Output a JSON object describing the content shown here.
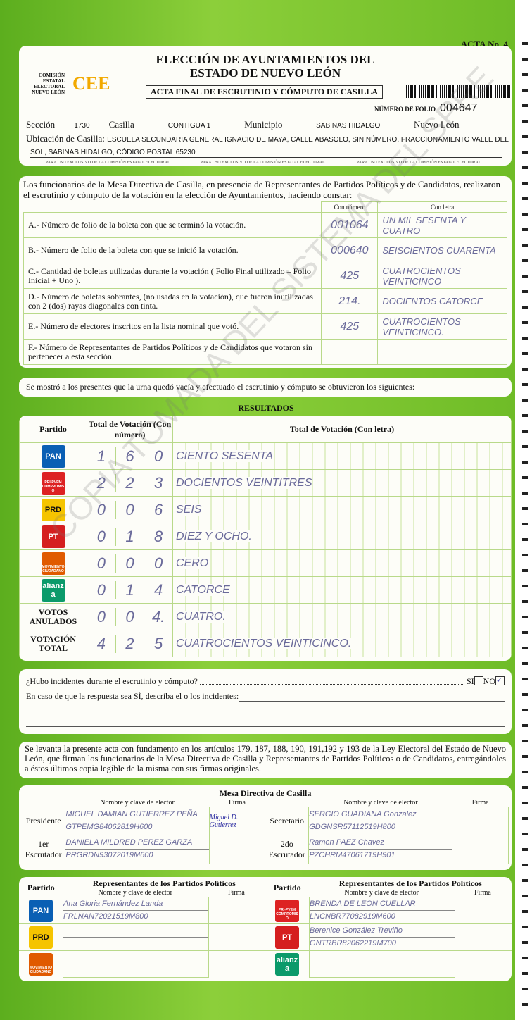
{
  "header": {
    "acta_no": "ACTA No. 4",
    "title_line1": "ELECCIÓN DE AYUNTAMIENTOS DEL",
    "title_line2": "ESTADO DE NUEVO LEÓN",
    "org_name": "COMISIÓN ESTATAL ELECTORAL NUEVO LEÓN",
    "org_logo": "CEE",
    "subtitle": "ACTA FINAL DE ESCRUTINIO Y CÓMPUTO DE CASILLA",
    "folio_label": "NÚMERO DE FOLIO",
    "folio": "004647"
  },
  "location": {
    "seccion_label": "Sección",
    "seccion": "1730",
    "casilla_label": "Casilla",
    "casilla": "CONTIGUA 1",
    "municipio_label": "Municipio",
    "municipio": "SABINAS HIDALGO",
    "estado": "Nuevo León",
    "ubicacion_label": "Ubicación de Casilla:",
    "ubicacion_1": "ESCUELA SECUNDARIA GENERAL IGNACIO DE MAYA, CALLE ABASOLO, SIN NÚMERO, FRACCIONAMIENTO VALLE DEL",
    "ubicacion_2": "SOL, SABINAS HIDALGO, CÓDIGO POSTAL 65230",
    "exclusive": "PARA USO EXCLUSIVO DE LA COMISIÓN ESTATAL ELECTORAL"
  },
  "intro": {
    "text": "Los funcionarios de la Mesa Directiva de Casilla, en presencia de Representantes de Partidos Políticos y de Candidatos, realizaron el escrutinio y cómputo de la votación en la elección de Ayuntamientos, haciendo constar:",
    "col_num": "Con número",
    "col_letra": "Con letra",
    "rows": [
      {
        "label": "A.- Número de folio de la boleta con que se terminó la votación.",
        "num": "001064",
        "letra": "UN MIL SESENTA Y CUATRO"
      },
      {
        "label": "B.- Número de folio de la boleta con que se inició la votación.",
        "num": "000640",
        "letra": "SEISCIENTOS CUARENTA"
      },
      {
        "label": "C.- Cantidad de boletas utilizadas durante la votación ( Folio Final utilizado – Folio Inicial + Uno ).",
        "num": "425",
        "letra": "CUATROCIENTOS VEINTICINCO"
      },
      {
        "label": "D.- Número de boletas sobrantes, (no usadas en la votación), que fueron inutilizadas con 2 (dos) rayas diagonales con tinta.",
        "num": "214.",
        "letra": "DOCIENTOS CATORCE"
      },
      {
        "label": "E.- Número de electores inscritos en la lista nominal que votó.",
        "num": "425",
        "letra": "CUATROCIENTOS VEINTICINCO."
      },
      {
        "label": "F.- Número de Representantes de Partidos Políticos y de Candidatos que votaron sin pertenecer a esta sección.",
        "num": "",
        "letra": ""
      }
    ]
  },
  "shown": "Se mostró a los presentes que la urna quedó vacía y efectuado el escrutinio y cómputo se obtuvieron los siguientes:",
  "results": {
    "title": "RESULTADOS",
    "col_partido": "Partido",
    "col_num": "Total de Votación (Con número)",
    "col_letra": "Total de Votación (Con letra)",
    "rows": [
      {
        "party": "PAN",
        "color": "#0a5fb4",
        "digits": [
          "1",
          "6",
          "0"
        ],
        "letra": "CIENTO SESENTA"
      },
      {
        "party": "PRI-PVEM COMPROMISO",
        "color": "#d22",
        "digits": [
          "2",
          "2",
          "3"
        ],
        "letra": "DOCIENTOS VEINTITRES"
      },
      {
        "party": "PRD",
        "color": "#f5c400",
        "digits": [
          "0",
          "0",
          "6"
        ],
        "letra": "SEIS"
      },
      {
        "party": "PT",
        "color": "#d51f1f",
        "digits": [
          "0",
          "1",
          "8"
        ],
        "letra": "DIEZ Y OCHO."
      },
      {
        "party": "MOVIMIENTO CIUDADANO",
        "color": "#e05a00",
        "digits": [
          "0",
          "0",
          "0"
        ],
        "letra": "CERO"
      },
      {
        "party": "alianza",
        "color": "#0b9a6a",
        "digits": [
          "0",
          "1",
          "4"
        ],
        "letra": "CATORCE"
      },
      {
        "party": "VOTOS ANULADOS",
        "color": "",
        "digits": [
          "0",
          "0",
          "4."
        ],
        "letra": "CUATRO."
      },
      {
        "party": "VOTACIÓN TOTAL",
        "color": "",
        "digits": [
          "4",
          "2",
          "5"
        ],
        "letra": "CUATROCIENTOS VEINTICINCO."
      }
    ]
  },
  "incidents": {
    "question": "¿Hubo incidentes durante el escrutinio y cómputo?",
    "si": "SI",
    "no": "NO",
    "no_checked": true,
    "describe": "En caso de que la respuesta sea SÍ, describa el o los incidentes:"
  },
  "legal": "Se levanta la presente acta con fundamento en los artículos 179, 187, 188, 190, 191,192 y 193 de la Ley Electoral del Estado de Nuevo León, que firman los funcionarios de la Mesa Directiva de Casilla y Representantes de Partidos Políticos o de Candidatos, entregándoles a éstos últimos copia legible de la misma con sus firmas originales.",
  "mesa": {
    "title": "Mesa Directiva de Casilla",
    "col_nombre": "Nombre y clave de elector",
    "col_firma": "Firma",
    "members": [
      {
        "role": "Presidente",
        "name": "MIGUEL DAMIAN GUTIERREZ PEÑA",
        "clave": "GTPEMG84062819H600",
        "firma": "Miguel D. Gutierrez"
      },
      {
        "role": "Secretario",
        "name": "SERGIO GUADIANA Gonzalez",
        "clave": "GDGNSR57112519H800",
        "firma": ""
      },
      {
        "role": "1er Escrutador",
        "name": "DANIELA MILDRED PEREZ GARZA",
        "clave": "PRGRDN93072019M600",
        "firma": ""
      },
      {
        "role": "2do Escrutador",
        "name": "Ramon PAEZ Chavez",
        "clave": "PZCHRM47061719H901",
        "firma": ""
      }
    ]
  },
  "reps": {
    "col_partido": "Partido",
    "col_title": "Representantes de los Partidos Políticos",
    "col_nombre": "Nombre y clave de elector",
    "col_firma": "Firma",
    "left": [
      {
        "party": "PAN",
        "color": "#0a5fb4",
        "name": "Ana Gloria Fernández Landa",
        "clave": "FRLNAN72021519M800"
      },
      {
        "party": "PRD",
        "color": "#f5c400",
        "name": "",
        "clave": ""
      },
      {
        "party": "MOVIMIENTO CIUDADANO",
        "color": "#e05a00",
        "name": "",
        "clave": ""
      }
    ],
    "right": [
      {
        "party": "PRI-PVEM COMPROMISO",
        "color": "#d22",
        "name": "BRENDA DE LEON CUELLAR",
        "clave": "LNCNBR77082919M600"
      },
      {
        "party": "PT",
        "color": "#d51f1f",
        "name": "Berenice González Treviño",
        "clave": "GNTRBR82062219M700"
      },
      {
        "party": "alianza",
        "color": "#0b9a6a",
        "name": "",
        "clave": ""
      }
    ]
  },
  "watermark": "COPIA TOMADA DEL SISTEMA DEL SPRE"
}
